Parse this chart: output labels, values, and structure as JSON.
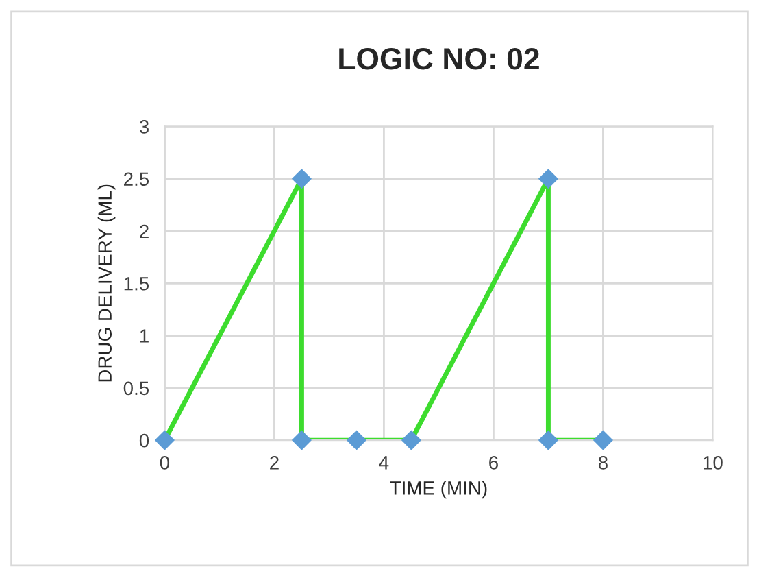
{
  "chart_data": {
    "type": "line",
    "title": "LOGIC NO: 02",
    "xlabel": "TIME (MIN)",
    "ylabel": "DRUG DELIVERY (ML)",
    "series": [
      {
        "color": "#3ddc2e",
        "colors": [
          "#5b9bd5",
          "#5b9bd5",
          "#5b9bd5",
          "#5b9bd5",
          "#5b9bd5",
          "#5b9bd5",
          "#5b9bd5",
          "#5b9bd5"
        ],
        "x": [
          0,
          2.5,
          2.5,
          3.5,
          4.5,
          7,
          7,
          8
        ],
        "values": [
          0,
          2.5,
          0,
          0,
          0,
          2.5,
          0,
          0
        ]
      }
    ],
    "marker": "diamond",
    "line_style": "solid",
    "grid": true,
    "legend": false,
    "xlim": [
      0,
      10
    ],
    "xticks": [
      0,
      2,
      4,
      6,
      8,
      10
    ],
    "ylim": [
      0,
      3
    ],
    "yticks": [
      0,
      0.5,
      1,
      1.5,
      2,
      2.5,
      3
    ]
  }
}
